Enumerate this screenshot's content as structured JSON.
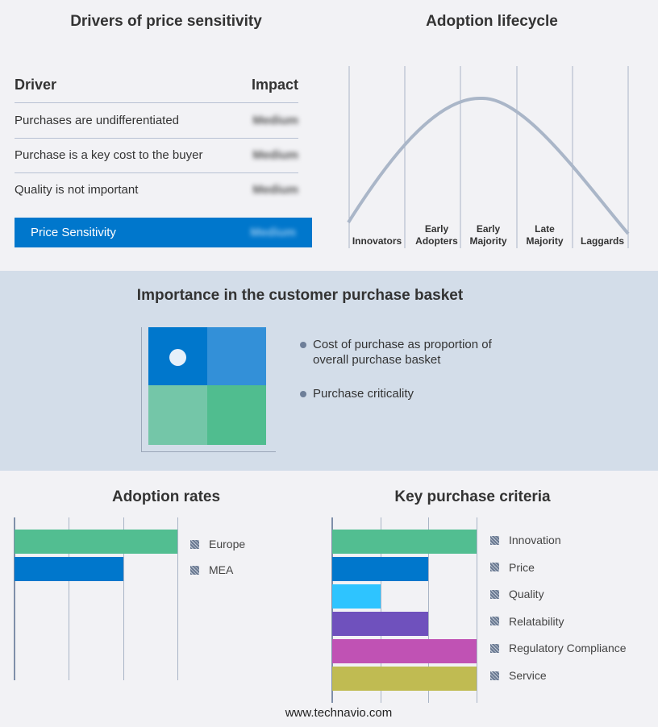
{
  "drivers": {
    "title": "Drivers of price sensitivity",
    "col_driver": "Driver",
    "col_impact": "Impact",
    "rows": [
      {
        "driver": "Purchases are undifferentiated",
        "impact": "Medium"
      },
      {
        "driver": "Purchase is a key cost to the buyer",
        "impact": "Medium"
      },
      {
        "driver": "Quality is not important",
        "impact": "Medium"
      }
    ],
    "summary": {
      "label": "Price Sensitivity",
      "impact": "Medium"
    },
    "accent": "#0077cc"
  },
  "lifecycle": {
    "title": "Adoption lifecycle",
    "stages": [
      [
        "Innovators"
      ],
      [
        "Early",
        "Adopters"
      ],
      [
        "Early",
        "Majority"
      ],
      [
        "Late",
        "Majority"
      ],
      [
        "Laggards"
      ]
    ]
  },
  "basket": {
    "title": "Importance in the customer purchase basket",
    "legend": [
      "Cost of purchase as proportion of overall purchase basket",
      "Purchase criticality"
    ],
    "quadrant_colors": [
      "#0077cc",
      "#3390d8",
      "#74c6a8",
      "#50bd8f"
    ]
  },
  "chart_data": [
    {
      "type": "bar",
      "orientation": "horizontal",
      "title": "Adoption rates",
      "categories": [
        "Europe",
        "MEA"
      ],
      "values": [
        3,
        2
      ],
      "xlim": [
        0,
        3
      ],
      "colors": [
        "#52be91",
        "#0077cc"
      ],
      "grid": true,
      "legend": "right"
    },
    {
      "type": "bar",
      "orientation": "horizontal",
      "title": "Key purchase criteria",
      "categories": [
        "Innovation",
        "Price",
        "Quality",
        "Relatability",
        "Regulatory Compliance",
        "Service"
      ],
      "values": [
        3,
        2,
        1,
        2,
        3,
        3
      ],
      "xlim": [
        0,
        3
      ],
      "colors": [
        "#52be91",
        "#0077cc",
        "#2ec4ff",
        "#6f51bd",
        "#c052b4",
        "#c0bb52"
      ],
      "grid": true,
      "legend": "right"
    }
  ],
  "footer": "www.technavio.com"
}
